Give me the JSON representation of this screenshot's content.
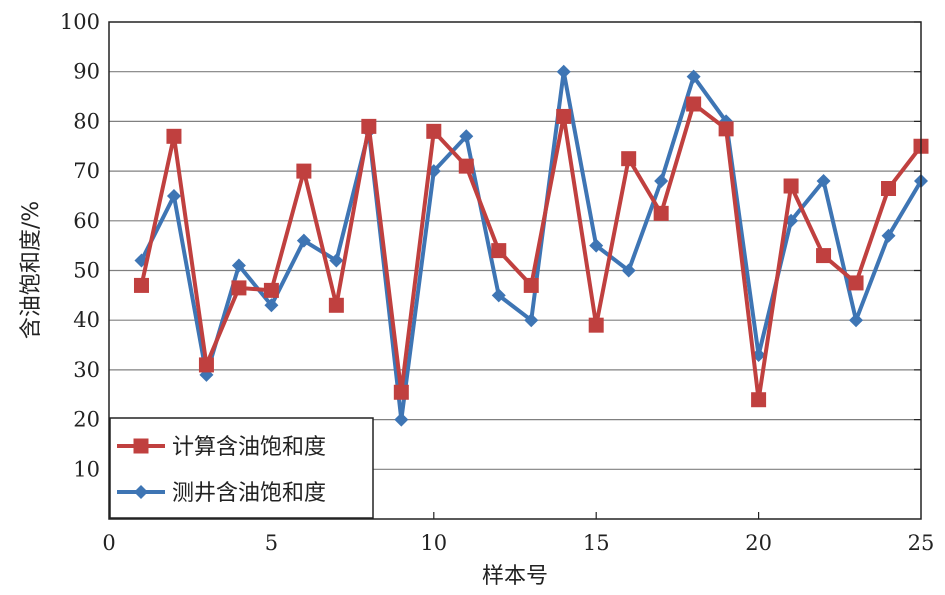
{
  "chart_data": {
    "type": "line",
    "xlabel": "样本号",
    "ylabel": "含油饱和度/%",
    "xlim": [
      0,
      25
    ],
    "ylim": [
      0,
      100
    ],
    "xticks": [
      0,
      5,
      10,
      15,
      20,
      25
    ],
    "yticks": [
      10,
      20,
      30,
      40,
      50,
      60,
      70,
      80,
      90,
      100
    ],
    "grid": "horizontal",
    "legend_position": "bottom-left",
    "x": [
      1,
      2,
      3,
      4,
      5,
      6,
      7,
      8,
      9,
      10,
      11,
      12,
      13,
      14,
      15,
      16,
      17,
      18,
      19,
      20,
      21,
      22,
      23,
      24,
      25
    ],
    "series": [
      {
        "name": "计算含油饱和度",
        "marker": "square",
        "color": "#c0403f",
        "values": [
          47,
          77,
          31,
          46.5,
          46,
          70,
          43,
          79,
          25.5,
          78,
          71,
          54,
          47,
          81,
          39,
          72.5,
          61.5,
          83.5,
          78.5,
          24,
          67,
          53,
          47.5,
          66.5,
          75
        ]
      },
      {
        "name": "测井含油饱和度",
        "marker": "diamond",
        "color": "#3e75b4",
        "values": [
          52,
          65,
          29,
          51,
          43,
          56,
          52,
          78,
          20,
          70,
          77,
          45,
          40,
          90,
          55,
          50,
          68,
          89,
          80,
          33,
          60,
          68,
          40,
          57,
          68
        ]
      }
    ]
  }
}
